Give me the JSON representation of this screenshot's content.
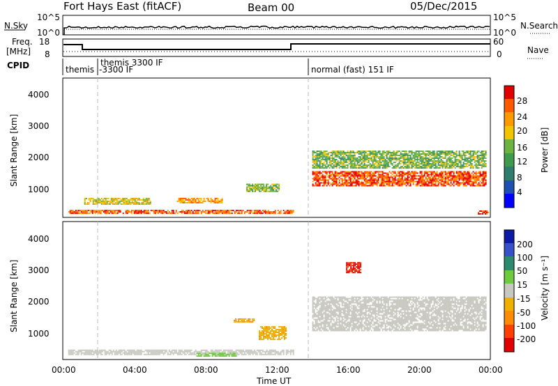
{
  "header": {
    "station": "Fort Hays East (fitACF)",
    "beam": "Beam 00",
    "date": "05/Dec/2015"
  },
  "top_panels": {
    "noise": {
      "left_label": "N.Sky",
      "left_ticks": [
        "10^5",
        "10^0"
      ],
      "right_ticks": [
        "10^5",
        "10^0"
      ],
      "right_label": "N.Search"
    },
    "freq": {
      "left_label_line1": "Freq.",
      "left_label_line2": "[MHz]",
      "left_ticks": [
        "18",
        "8"
      ],
      "right_ticks": [
        "60",
        "0"
      ],
      "right_label": "Nave"
    },
    "cpid": {
      "label": "CPID",
      "segments": [
        "themis",
        "themis 3300 IF",
        "-3300 IF",
        "normal (fast) 151 IF"
      ]
    }
  },
  "time_axis": {
    "ticks": [
      "00:00",
      "04:00",
      "08:00",
      "12:00",
      "16:00",
      "20:00",
      "00:00"
    ],
    "label": "Time UT"
  },
  "power_panel": {
    "ylabel": "Slant Range [km]",
    "yticks": [
      "4000",
      "3000",
      "2000",
      "1000"
    ],
    "colorbar_label": "Power [dB]",
    "colorbar_ticks": [
      "28",
      "24",
      "20",
      "16",
      "12",
      "8",
      "4"
    ],
    "colors": [
      "#0000ff",
      "#1e50b4",
      "#2e7d6e",
      "#3e9b4e",
      "#6db33f",
      "#f5c400",
      "#ff9900",
      "#ff5a00",
      "#e00000"
    ]
  },
  "velocity_panel": {
    "ylabel": "Slant Range [km]",
    "yticks": [
      "4000",
      "3000",
      "2000",
      "1000"
    ],
    "colorbar_label": "Velocity [m s⁻¹]",
    "colorbar_ticks": [
      "200",
      "100",
      "50",
      "15",
      "-15",
      "-50",
      "-100",
      "-200"
    ],
    "colors": [
      "#0d1aa6",
      "#3552c9",
      "#2e8a6e",
      "#6ecb3d",
      "#c8c8c0",
      "#f0b000",
      "#ff8c00",
      "#ff4000",
      "#e00000"
    ]
  },
  "chart_data": [
    {
      "type": "heatmap",
      "title": "Power",
      "xlabel": "Time UT",
      "ylabel": "Slant Range [km]",
      "x_range": [
        "00:00",
        "24:00"
      ],
      "ylim": [
        180,
        4600
      ],
      "colorbar": "Power [dB]",
      "colorbar_range": [
        0,
        30
      ],
      "regions": [
        {
          "t": [
            0.3,
            13.0
          ],
          "range_km": [
            250,
            420
          ],
          "value_db": 26
        },
        {
          "t": [
            1.2,
            5.0
          ],
          "range_km": [
            550,
            800
          ],
          "value_db": 18
        },
        {
          "t": [
            6.4,
            9.0
          ],
          "range_km": [
            600,
            800
          ],
          "value_db": 22
        },
        {
          "t": [
            10.3,
            12.2
          ],
          "range_km": [
            950,
            1250
          ],
          "value_db": 14
        },
        {
          "t": [
            14.0,
            23.8
          ],
          "range_km": [
            1150,
            1650
          ],
          "value_db": 27
        },
        {
          "t": [
            14.0,
            23.8
          ],
          "range_km": [
            1700,
            2300
          ],
          "value_db": 14
        },
        {
          "t": [
            23.3,
            24.0
          ],
          "range_km": [
            250,
            400
          ],
          "value_db": 28
        }
      ]
    },
    {
      "type": "heatmap",
      "title": "Velocity",
      "xlabel": "Time UT",
      "ylabel": "Slant Range [km]",
      "x_range": [
        "00:00",
        "24:00"
      ],
      "ylim": [
        180,
        4600
      ],
      "colorbar": "Velocity [m s⁻¹]",
      "colorbar_range": [
        -200,
        200
      ],
      "regions": [
        {
          "t": [
            0.3,
            13.0
          ],
          "range_km": [
            300,
            500
          ],
          "value_ms": 0
        },
        {
          "t": [
            7.5,
            9.8
          ],
          "range_km": [
            250,
            400
          ],
          "value_ms": 40
        },
        {
          "t": [
            9.6,
            10.8
          ],
          "range_km": [
            1350,
            1500
          ],
          "value_ms": -70
        },
        {
          "t": [
            11.0,
            12.6
          ],
          "range_km": [
            800,
            1250
          ],
          "value_ms": -60
        },
        {
          "t": [
            14.0,
            23.8
          ],
          "range_km": [
            1050,
            2200
          ],
          "value_ms": 0
        },
        {
          "t": [
            15.9,
            16.8
          ],
          "range_km": [
            2900,
            3300
          ],
          "value_ms": -180
        }
      ]
    }
  ]
}
